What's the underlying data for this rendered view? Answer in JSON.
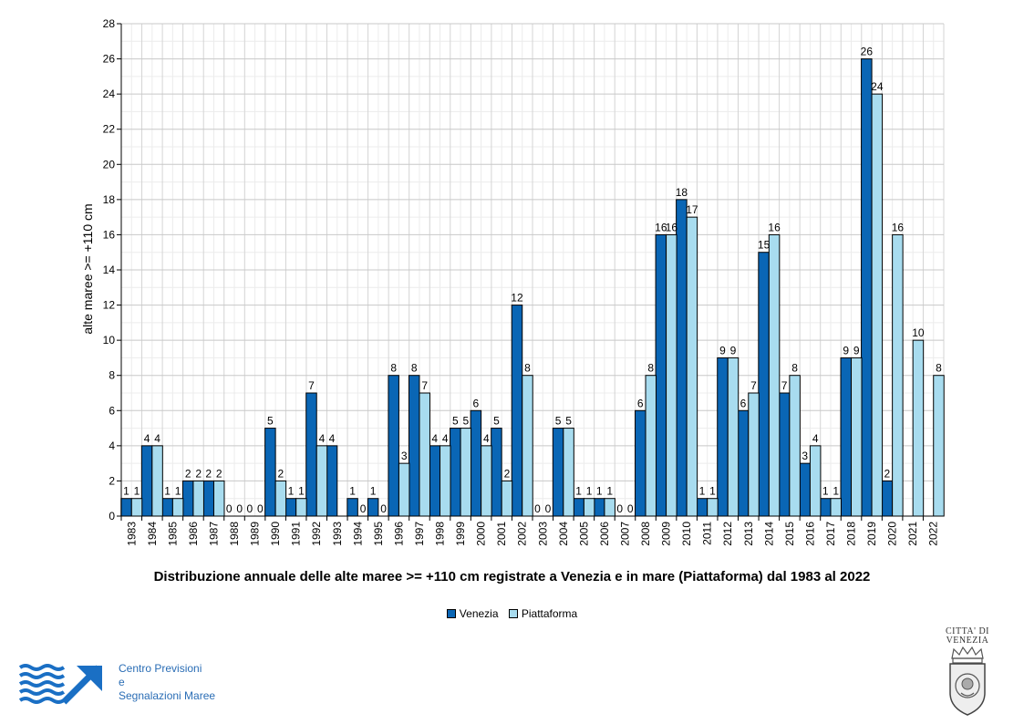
{
  "chart_data": {
    "type": "bar",
    "title": "Distribuzione annuale delle alte maree >= +110 cm registrate a Venezia e in mare (Piattaforma) dal 1983 al 2022",
    "xlabel": "",
    "ylabel": "alte maree >= +110 cm",
    "ylim": [
      0,
      28
    ],
    "yticks": [
      0,
      2,
      4,
      6,
      8,
      10,
      12,
      14,
      16,
      18,
      20,
      22,
      24,
      26,
      28
    ],
    "grid": true,
    "legend_position": "bottom",
    "categories": [
      "1983",
      "1984",
      "1985",
      "1986",
      "1987",
      "1988",
      "1989",
      "1990",
      "1991",
      "1992",
      "1993",
      "1994",
      "1995",
      "1996",
      "1997",
      "1998",
      "1999",
      "2000",
      "2001",
      "2002",
      "2003",
      "2004",
      "2005",
      "2006",
      "2007",
      "2008",
      "2009",
      "2010",
      "2011",
      "2012",
      "2013",
      "2014",
      "2015",
      "2016",
      "2017",
      "2018",
      "2019",
      "2020",
      "2021",
      "2022"
    ],
    "series": [
      {
        "name": "Venezia",
        "color": "#0a66b5",
        "values": [
          1,
          4,
          1,
          2,
          2,
          0,
          0,
          5,
          1,
          7,
          4,
          1,
          1,
          8,
          8,
          4,
          5,
          6,
          5,
          12,
          0,
          5,
          1,
          1,
          0,
          6,
          16,
          18,
          1,
          9,
          6,
          15,
          7,
          3,
          1,
          9,
          26,
          2,
          null,
          null
        ]
      },
      {
        "name": "Piattaforma",
        "color": "#a8dcef",
        "values": [
          1,
          4,
          1,
          2,
          2,
          0,
          0,
          2,
          1,
          4,
          null,
          0,
          0,
          3,
          7,
          4,
          5,
          4,
          2,
          8,
          0,
          5,
          1,
          1,
          0,
          8,
          16,
          17,
          1,
          9,
          7,
          16,
          8,
          4,
          1,
          9,
          24,
          16,
          10,
          8
        ]
      }
    ]
  },
  "footer": {
    "org_lines": [
      "Centro Previsioni",
      "e",
      "Segnalazioni Maree"
    ],
    "seal_lines": [
      "CITTA' DI",
      "VENEZIA"
    ]
  },
  "colors": {
    "logo_blue": "#1a6fc4",
    "org_text": "#2a6db5"
  }
}
